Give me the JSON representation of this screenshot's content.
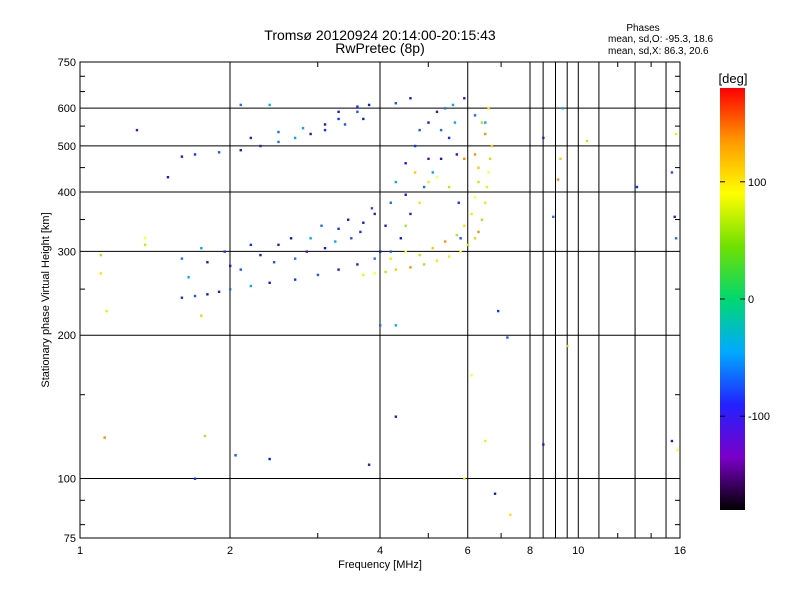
{
  "chart_data": {
    "type": "scatter",
    "title": "Tromsø 20120924 20:14:00-20:15:43",
    "subtitle": "RwPretec (8p)",
    "xlabel": "Frequency [MHz]",
    "ylabel": "Stationary phase Virtual Height [km]",
    "x_scale": "log",
    "y_scale": "log",
    "xlim": [
      1,
      16
    ],
    "ylim": [
      75,
      750
    ],
    "x_ticks": [
      1,
      2,
      4,
      6,
      8,
      10,
      16
    ],
    "y_ticks": [
      75,
      100,
      200,
      300,
      400,
      500,
      600,
      750
    ],
    "grid": true,
    "stats": {
      "title": "Phases",
      "line_o": "mean, sd,O: -95.3, 18.6",
      "line_x": "mean, sd,X:  86.3, 20.6"
    },
    "colorbar": {
      "label": "[deg]",
      "range": [
        -180,
        180
      ],
      "ticks": [
        -100,
        0,
        100
      ],
      "tick_labels": [
        "-100",
        "0",
        "100"
      ]
    },
    "series": [
      {
        "name": "O",
        "values": [
          [
            1.6,
            240
          ],
          [
            1.7,
            242
          ],
          [
            1.8,
            244
          ],
          [
            1.9,
            247
          ],
          [
            2.0,
            250
          ],
          [
            2.2,
            254
          ],
          [
            2.4,
            258
          ],
          [
            2.7,
            262
          ],
          [
            3.0,
            268
          ],
          [
            3.3,
            275
          ],
          [
            3.6,
            282
          ],
          [
            3.9,
            290
          ],
          [
            1.65,
            265
          ],
          [
            1.8,
            285
          ],
          [
            1.95,
            300
          ],
          [
            2.1,
            275
          ],
          [
            2.3,
            295
          ],
          [
            2.5,
            310
          ],
          [
            2.7,
            290
          ],
          [
            2.9,
            320
          ],
          [
            3.1,
            305
          ],
          [
            3.3,
            335
          ],
          [
            3.5,
            320
          ],
          [
            3.7,
            345
          ],
          [
            3.9,
            360
          ],
          [
            1.6,
            290
          ],
          [
            1.75,
            305
          ],
          [
            2.0,
            280
          ],
          [
            2.2,
            310
          ],
          [
            2.45,
            285
          ],
          [
            2.65,
            320
          ],
          [
            2.85,
            300
          ],
          [
            3.05,
            340
          ],
          [
            3.25,
            315
          ],
          [
            3.45,
            350
          ],
          [
            3.65,
            330
          ],
          [
            3.85,
            370
          ],
          [
            4.0,
            300
          ],
          [
            4.1,
            340
          ],
          [
            4.2,
            380
          ],
          [
            4.3,
            420
          ],
          [
            4.5,
            460
          ],
          [
            4.7,
            500
          ],
          [
            4.8,
            540
          ],
          [
            5.0,
            560
          ],
          [
            5.2,
            590
          ],
          [
            5.4,
            600
          ],
          [
            5.6,
            610
          ],
          [
            5.7,
            480
          ],
          [
            5.75,
            380
          ],
          [
            5.8,
            320
          ],
          [
            4.4,
            320
          ],
          [
            4.6,
            360
          ],
          [
            4.9,
            410
          ],
          [
            5.1,
            440
          ],
          [
            5.3,
            470
          ],
          [
            5.5,
            520
          ],
          [
            4.2,
            300
          ],
          [
            4.5,
            395
          ],
          [
            5.0,
            470
          ],
          [
            5.3,
            540
          ],
          [
            5.65,
            560
          ],
          [
            1.6,
            475
          ],
          [
            1.7,
            480
          ],
          [
            1.9,
            485
          ],
          [
            2.1,
            490
          ],
          [
            2.3,
            500
          ],
          [
            2.5,
            510
          ],
          [
            2.7,
            520
          ],
          [
            2.9,
            530
          ],
          [
            3.1,
            540
          ],
          [
            3.4,
            555
          ],
          [
            3.7,
            570
          ],
          [
            2.2,
            520
          ],
          [
            2.5,
            535
          ],
          [
            2.8,
            545
          ],
          [
            3.1,
            555
          ],
          [
            3.3,
            570
          ],
          [
            3.6,
            590
          ],
          [
            3.8,
            610
          ],
          [
            1.3,
            540
          ],
          [
            2.1,
            610
          ],
          [
            2.4,
            610
          ],
          [
            3.3,
            590
          ],
          [
            3.6,
            605
          ],
          [
            4.3,
            615
          ],
          [
            4.6,
            630
          ],
          [
            5.9,
            630
          ],
          [
            6.2,
            580
          ],
          [
            6.5,
            560
          ],
          [
            1.5,
            430
          ],
          [
            1.7,
            100
          ],
          [
            2.05,
            112
          ],
          [
            2.4,
            110
          ],
          [
            3.8,
            107
          ],
          [
            4.0,
            210
          ],
          [
            4.3,
            210
          ],
          [
            4.3,
            135
          ],
          [
            6.9,
            225
          ],
          [
            7.2,
            198
          ],
          [
            6.8,
            93
          ],
          [
            8.5,
            520
          ],
          [
            8.9,
            355
          ],
          [
            9.3,
            600
          ],
          [
            8.5,
            118
          ],
          [
            13.1,
            410
          ],
          [
            15.4,
            440
          ],
          [
            15.4,
            120
          ],
          [
            15.6,
            355
          ],
          [
            15.7,
            320
          ]
        ]
      },
      {
        "name": "X",
        "values": [
          [
            3.7,
            268
          ],
          [
            3.9,
            270
          ],
          [
            4.1,
            272
          ],
          [
            4.3,
            275
          ],
          [
            4.6,
            278
          ],
          [
            4.9,
            282
          ],
          [
            5.2,
            287
          ],
          [
            5.5,
            293
          ],
          [
            5.8,
            300
          ],
          [
            6.0,
            310
          ],
          [
            6.2,
            320
          ],
          [
            6.3,
            330
          ],
          [
            6.4,
            350
          ],
          [
            6.5,
            380
          ],
          [
            6.55,
            410
          ],
          [
            6.6,
            440
          ],
          [
            6.65,
            470
          ],
          [
            6.7,
            500
          ],
          [
            6.5,
            530
          ],
          [
            6.4,
            560
          ],
          [
            6.6,
            600
          ],
          [
            4.2,
            290
          ],
          [
            4.5,
            300
          ],
          [
            4.8,
            295
          ],
          [
            5.1,
            305
          ],
          [
            5.4,
            315
          ],
          [
            5.7,
            325
          ],
          [
            5.9,
            340
          ],
          [
            6.1,
            360
          ],
          [
            6.2,
            390
          ],
          [
            6.3,
            420
          ],
          [
            6.3,
            450
          ],
          [
            6.2,
            480
          ],
          [
            4.5,
            340
          ],
          [
            4.8,
            380
          ],
          [
            5.0,
            420
          ],
          [
            5.2,
            430
          ],
          [
            5.5,
            410
          ],
          [
            4.7,
            440
          ],
          [
            5.9,
            470
          ],
          [
            1.1,
            295
          ],
          [
            1.1,
            270
          ],
          [
            1.13,
            225
          ],
          [
            1.35,
            320
          ],
          [
            1.35,
            310
          ],
          [
            1.75,
            220
          ],
          [
            1.12,
            122
          ],
          [
            1.78,
            123
          ],
          [
            7.3,
            84
          ],
          [
            15.7,
            530
          ],
          [
            15.8,
            115
          ],
          [
            10.4,
            512
          ],
          [
            9.2,
            470
          ],
          [
            9.1,
            425
          ],
          [
            9.5,
            190
          ],
          [
            5.9,
            100
          ],
          [
            6.5,
            120
          ],
          [
            6.1,
            165
          ]
        ]
      }
    ]
  }
}
